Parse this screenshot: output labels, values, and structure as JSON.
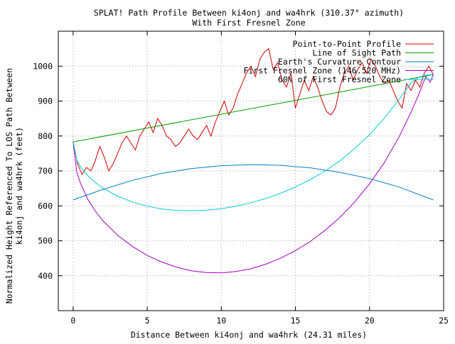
{
  "chart_data": {
    "type": "line",
    "title": "SPLAT! Path Profile Between ki4onj and wa4hrk (310.37° azimuth)",
    "subtitle": "With First Fresnel Zone",
    "xlabel": "Distance Between ki4onj and wa4hrk (24.31 miles)",
    "ylabel_line1": "Normalized Height Referenced To LOS Path Between",
    "ylabel_line2": "ki4onj and wa4hrk (feet)",
    "xlim": [
      -1,
      25
    ],
    "ylim": [
      300,
      1100
    ],
    "xticks": [
      0,
      5,
      10,
      15,
      20,
      25
    ],
    "yticks": [
      400,
      500,
      600,
      700,
      800,
      900,
      1000
    ],
    "grid": true,
    "legend_position": "top-right",
    "series": [
      {
        "name": "Point-to-Point Profile",
        "color": "#cc0000",
        "x": [
          0,
          0.3,
          0.6,
          0.9,
          1.2,
          1.5,
          1.8,
          2.1,
          2.4,
          2.7,
          3.0,
          3.3,
          3.6,
          3.9,
          4.2,
          4.5,
          4.8,
          5.1,
          5.4,
          5.7,
          6.0,
          6.3,
          6.6,
          6.9,
          7.2,
          7.5,
          7.8,
          8.1,
          8.4,
          8.7,
          9.0,
          9.3,
          9.6,
          9.9,
          10.2,
          10.5,
          10.8,
          11.1,
          11.4,
          11.7,
          12.0,
          12.3,
          12.6,
          12.9,
          13.2,
          13.5,
          13.8,
          14.1,
          14.4,
          14.7,
          15.0,
          15.3,
          15.6,
          15.9,
          16.2,
          16.5,
          16.8,
          17.1,
          17.4,
          17.7,
          18.0,
          18.3,
          18.6,
          18.9,
          19.2,
          19.5,
          19.8,
          20.1,
          20.4,
          20.7,
          21.0,
          21.3,
          21.6,
          21.9,
          22.2,
          22.5,
          22.8,
          23.1,
          23.4,
          23.7,
          24.0,
          24.31
        ],
        "values": [
          785,
          720,
          690,
          710,
          700,
          730,
          770,
          740,
          700,
          720,
          750,
          780,
          800,
          780,
          760,
          800,
          820,
          840,
          810,
          850,
          830,
          800,
          790,
          770,
          780,
          800,
          820,
          800,
          790,
          810,
          830,
          800,
          840,
          870,
          900,
          860,
          880,
          920,
          950,
          980,
          1000,
          970,
          1020,
          1040,
          1050,
          990,
          1010,
          960,
          940,
          980,
          880,
          920,
          960,
          930,
          970,
          940,
          900,
          870,
          860,
          880,
          940,
          980,
          1000,
          960,
          990,
          1010,
          980,
          1020,
          1000,
          970,
          950,
          960,
          930,
          900,
          880,
          950,
          930,
          960,
          940,
          980,
          1000,
          975
        ]
      },
      {
        "name": "Line of Sight Path",
        "color": "#00a000",
        "x": [
          0,
          24.31
        ],
        "values": [
          783,
          976
        ]
      },
      {
        "name": "Earth's Curvature Contour",
        "color": "#0080c0",
        "x": [
          0,
          2,
          4,
          6,
          8,
          10,
          12.15,
          14,
          16,
          18,
          20,
          22,
          24.31
        ],
        "values": [
          617,
          647,
          673,
          693,
          707,
          715,
          718,
          716,
          709,
          696,
          678,
          654,
          617
        ]
      },
      {
        "name": "First Fresnel Zone (146.520 MHz)",
        "color": "#a000c0",
        "x": [
          0,
          0.25,
          0.5,
          1,
          1.5,
          2,
          3,
          4,
          5,
          6,
          7,
          8,
          9,
          10,
          11,
          12,
          13,
          14,
          15,
          16,
          17,
          18,
          19,
          20,
          21,
          22,
          22.8,
          23.3,
          23.8,
          24.1,
          24.31
        ],
        "values": [
          783,
          696,
          664,
          618,
          585,
          558,
          516,
          484,
          458,
          439,
          424,
          414,
          409,
          408,
          412,
          420,
          433,
          450,
          472,
          498,
          530,
          567,
          611,
          663,
          724,
          798,
          868,
          917,
          970,
          954,
          976
        ]
      },
      {
        "name": "60% of First Fresnel Zone",
        "color": "#00c8d8",
        "x": [
          0,
          0.25,
          0.5,
          1,
          1.5,
          2,
          3,
          4,
          5,
          6,
          7,
          8,
          9,
          10,
          11,
          12,
          13,
          14,
          15,
          16,
          17,
          18,
          19,
          20,
          21,
          22,
          22.8,
          23.3,
          23.8,
          24.1,
          24.31
        ],
        "values": [
          783,
          731,
          712,
          686,
          667,
          651,
          628,
          611,
          599,
          591,
          587,
          586,
          588,
          592,
          599,
          609,
          621,
          636,
          654,
          675,
          700,
          729,
          764,
          804,
          851,
          905,
          952,
          968,
          975,
          975,
          976
        ]
      }
    ]
  }
}
